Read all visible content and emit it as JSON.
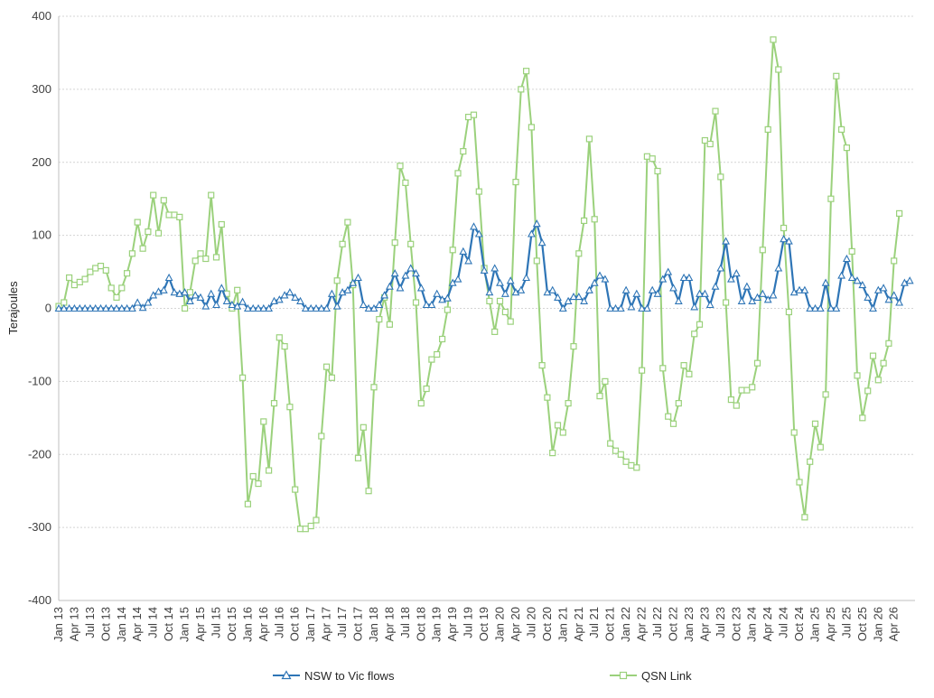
{
  "chart_data": {
    "type": "line",
    "title": "",
    "xlabel": "",
    "ylabel": "Terajoules",
    "ylim": [
      -400,
      400
    ],
    "yticks": [
      400,
      300,
      200,
      100,
      0,
      -100,
      -200,
      -300,
      -400
    ],
    "x_tick_labels": [
      "Jan 13",
      "Apr 13",
      "Jul 13",
      "Oct 13",
      "Jan 14",
      "Apr 14",
      "Jul 14",
      "Oct 14",
      "Jan 15",
      "Apr 15",
      "Jul 15",
      "Oct 15",
      "Jan 16",
      "Apr 16",
      "Jul 16",
      "Oct 16",
      "Jan 17",
      "Apr 17",
      "Jul 17",
      "Oct 17",
      "Jan 18",
      "Apr 18",
      "Jul 18",
      "Oct 18",
      "Jan 19",
      "Apr 19",
      "Jul 19",
      "Oct 19",
      "Jan 20",
      "Apr 20",
      "Jul 20",
      "Oct 20",
      "Jan 21",
      "Apr 21",
      "Jul 21",
      "Oct 21",
      "Jan 22",
      "Apr 22",
      "Jul 22",
      "Oct 22",
      "Jan 23",
      "Apr 23",
      "Jul 23",
      "Oct 23",
      "Jan 24",
      "Apr 24",
      "Jul 24",
      "Oct 24",
      "Jan 25",
      "Apr 25",
      "Jul 25",
      "Oct 25",
      "Jan 26",
      "Apr 26"
    ],
    "grid": true,
    "legend_position": "bottom",
    "series": [
      {
        "name": "NSW to Vic flows",
        "color": "#2e75b6",
        "marker": "triangle",
        "values": [
          0,
          0,
          0,
          0,
          0,
          0,
          0,
          0,
          0,
          0,
          0,
          0,
          0,
          0,
          0,
          8,
          1,
          8,
          18,
          23,
          25,
          42,
          22,
          20,
          22,
          10,
          18,
          15,
          3,
          20,
          5,
          28,
          10,
          5,
          3,
          9,
          0,
          0,
          0,
          0,
          0,
          10,
          12,
          18,
          22,
          15,
          10,
          0,
          0,
          0,
          0,
          0,
          20,
          3,
          22,
          25,
          35,
          42,
          5,
          0,
          0,
          5,
          18,
          30,
          48,
          28,
          45,
          55,
          48,
          28,
          5,
          5,
          20,
          12,
          14,
          35,
          40,
          78,
          65,
          112,
          102,
          52,
          22,
          55,
          35,
          20,
          38,
          22,
          25,
          42,
          102,
          116,
          90,
          22,
          25,
          15,
          0,
          10,
          16,
          16,
          10,
          25,
          35,
          45,
          40,
          0,
          0,
          0,
          25,
          2,
          20,
          0,
          0,
          25,
          20,
          40,
          50,
          28,
          10,
          42,
          42,
          2,
          20,
          20,
          5,
          30,
          55,
          92,
          40,
          48,
          10,
          30,
          10,
          15,
          20,
          12,
          18,
          55,
          95,
          92,
          22,
          25,
          25,
          0,
          0,
          0,
          35,
          0,
          0,
          45,
          68,
          42,
          38,
          32,
          15,
          0,
          25,
          28,
          12,
          18,
          8,
          35,
          38
        ]
      },
      {
        "name": "QSN Link",
        "color": "#9bd17c",
        "marker": "square",
        "values": [
          3,
          8,
          42,
          32,
          36,
          40,
          50,
          55,
          58,
          52,
          28,
          15,
          28,
          48,
          75,
          118,
          82,
          105,
          155,
          103,
          148,
          128,
          128,
          125,
          0,
          22,
          65,
          75,
          68,
          155,
          70,
          115,
          20,
          0,
          25,
          -95,
          -268,
          -230,
          -240,
          -155,
          -222,
          -130,
          -40,
          -52,
          -135,
          -248,
          -302,
          -302,
          -298,
          -290,
          -175,
          -80,
          -95,
          38,
          88,
          118,
          32,
          -205,
          -163,
          -250,
          -108,
          -15,
          15,
          -22,
          90,
          195,
          172,
          88,
          8,
          -130,
          -110,
          -70,
          -63,
          -42,
          -2,
          80,
          185,
          215,
          262,
          265,
          160,
          55,
          10,
          -32,
          10,
          -5,
          -18,
          173,
          300,
          325,
          248,
          65,
          -78,
          -122,
          -198,
          -160,
          -170,
          -130,
          -52,
          75,
          120,
          232,
          122,
          -120,
          -100,
          -185,
          -195,
          -200,
          -210,
          -215,
          -218,
          -85,
          208,
          205,
          188,
          -82,
          -148,
          -158,
          -130,
          -78,
          -90,
          -35,
          -22,
          230,
          225,
          270,
          180,
          8,
          -125,
          -133,
          -112,
          -112,
          -108,
          -75,
          80,
          245,
          368,
          327,
          110,
          -5,
          -170,
          -238,
          -286,
          -210,
          -158,
          -190,
          -118,
          150,
          318,
          245,
          220,
          78,
          -92,
          -150,
          -113,
          -65,
          -98,
          -75,
          -48,
          65,
          130
        ]
      }
    ]
  }
}
